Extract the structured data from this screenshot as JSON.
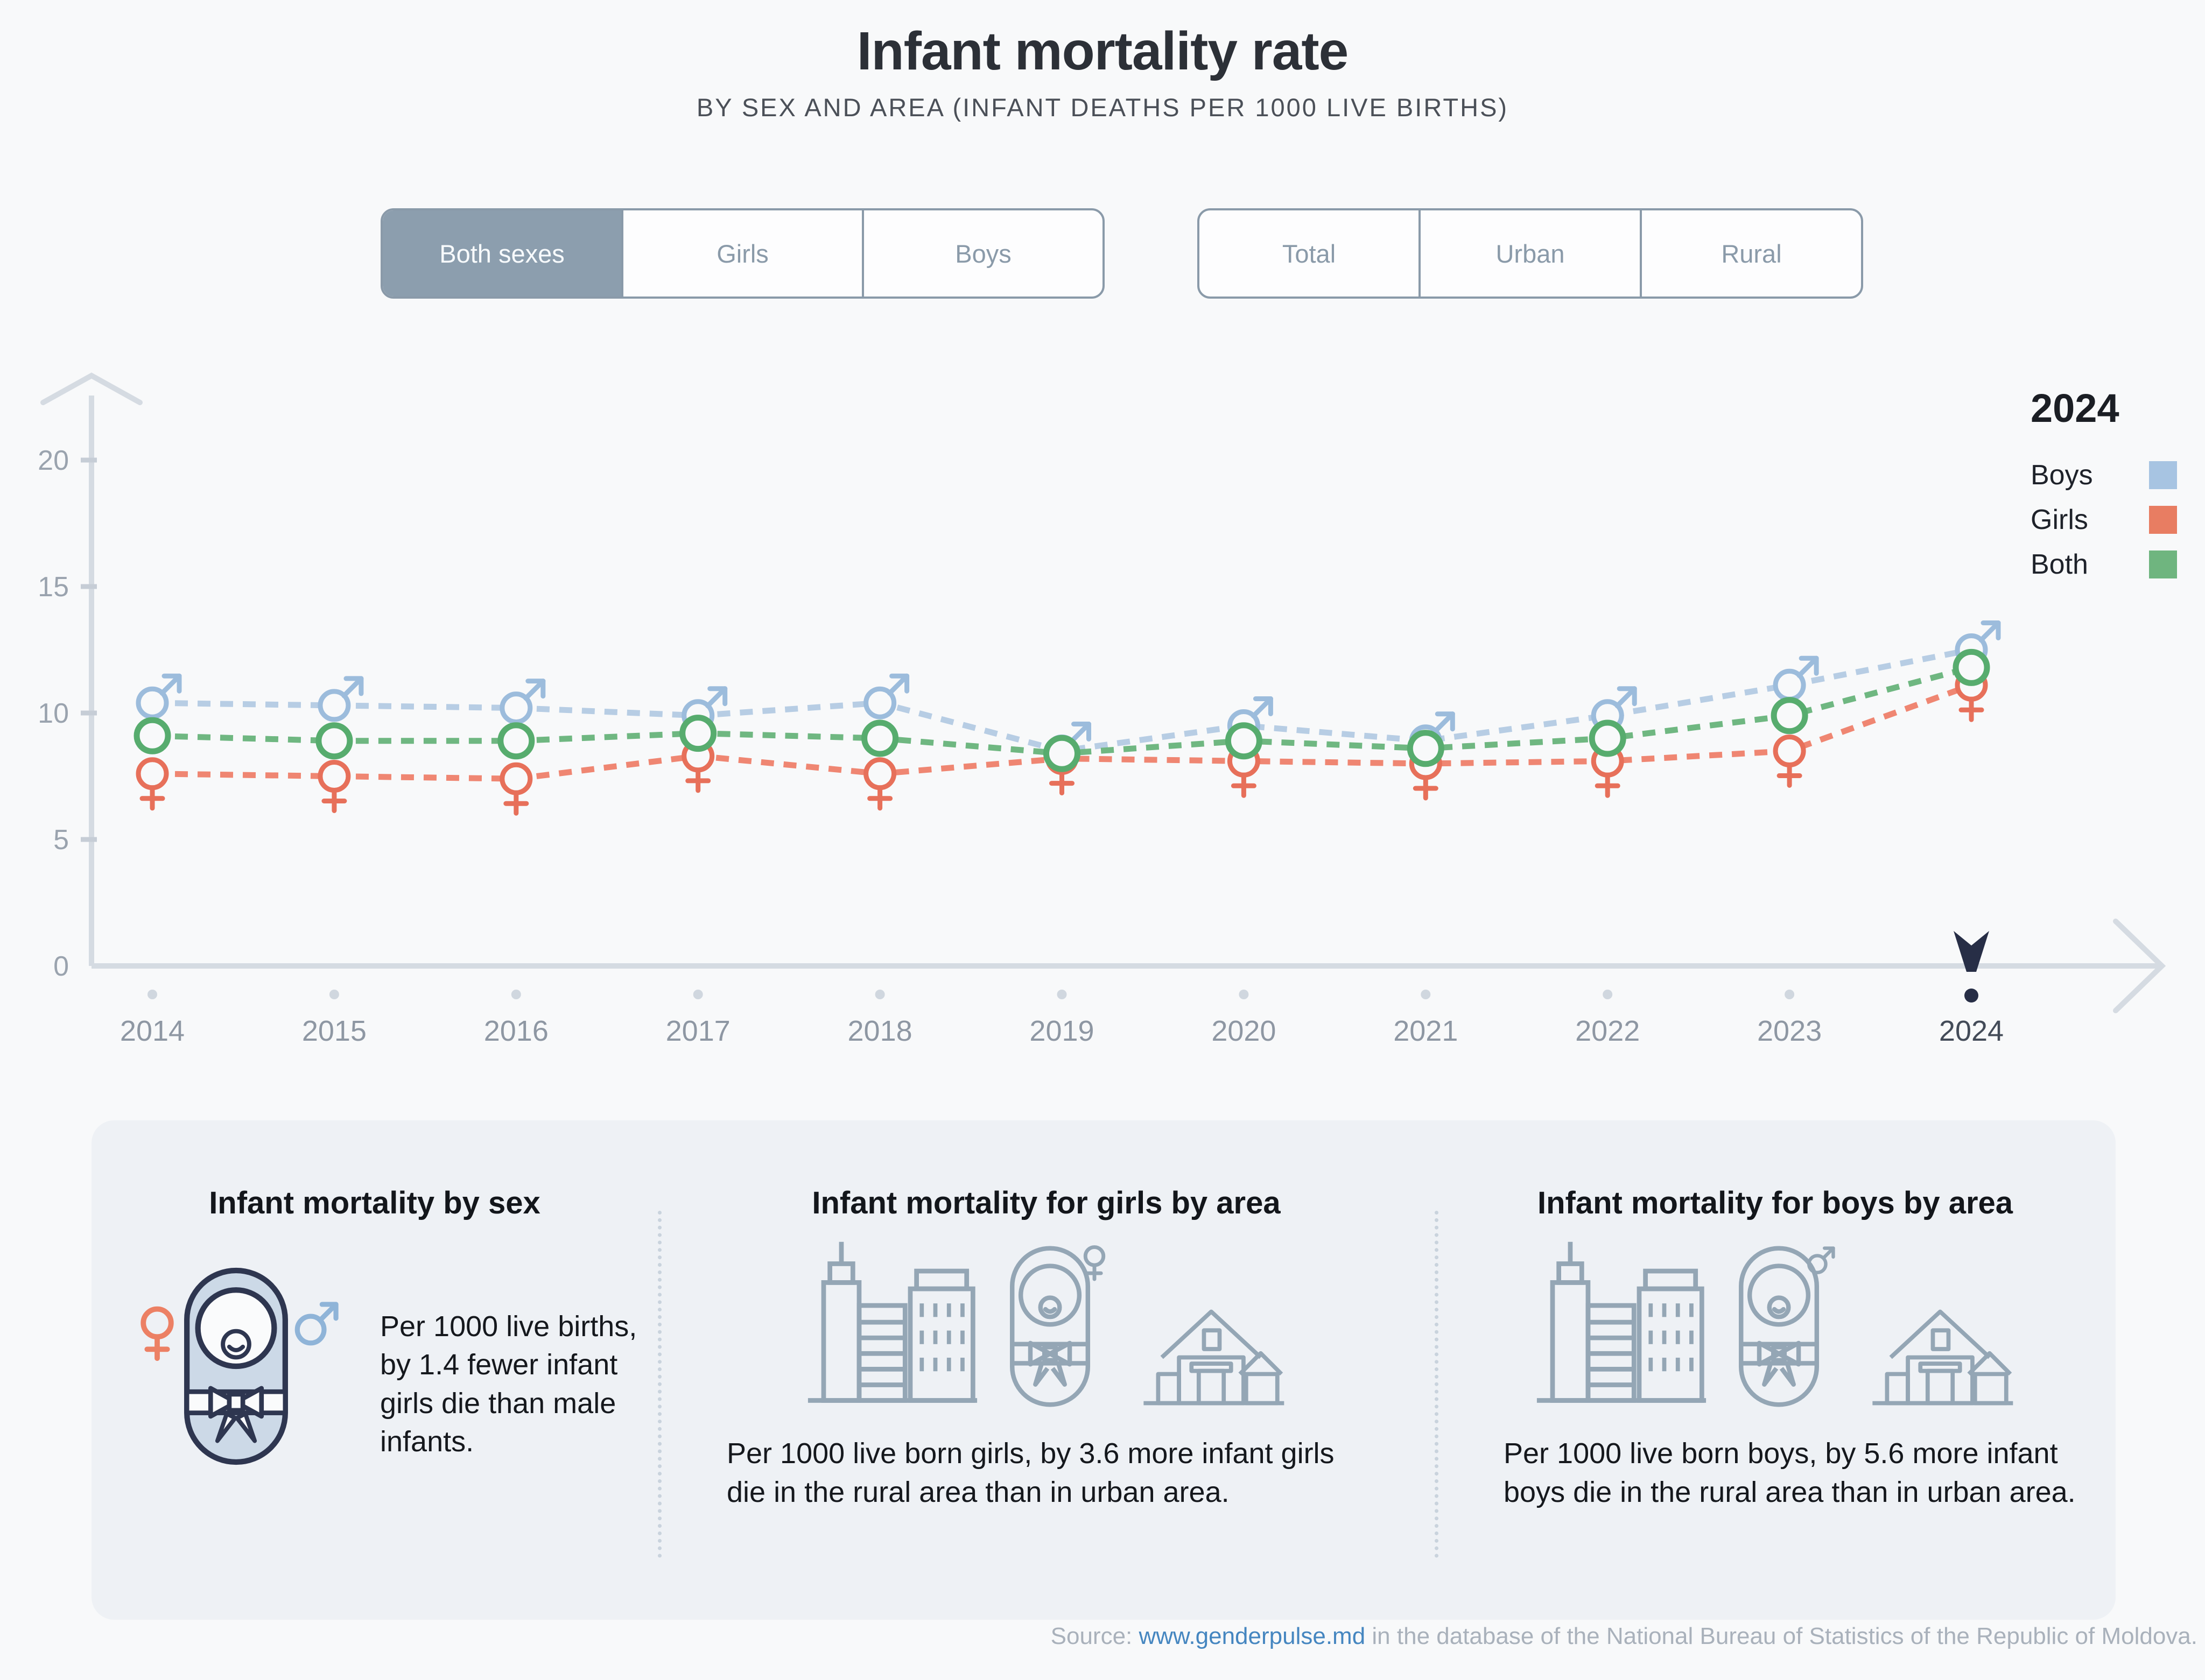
{
  "title": "Infant mortality rate",
  "subtitle": "BY SEX AND AREA (INFANT DEATHS PER 1000 LIVE BIRTHS)",
  "sex_toggle": {
    "options": [
      "Both sexes",
      "Girls",
      "Boys"
    ],
    "selected": "Both sexes"
  },
  "area_toggle": {
    "options": [
      "Total",
      "Urban",
      "Rural"
    ],
    "selected": ""
  },
  "legend": {
    "year": "2024",
    "items": [
      {
        "label": "Boys",
        "color": "#a7c4e2"
      },
      {
        "label": "Girls",
        "color": "#e87d62"
      },
      {
        "label": "Both",
        "color": "#6fb57f"
      }
    ]
  },
  "chart_data": {
    "type": "line",
    "x": [
      "2014",
      "2015",
      "2016",
      "2017",
      "2018",
      "2019",
      "2020",
      "2021",
      "2022",
      "2023",
      "2024"
    ],
    "ylim": [
      0,
      20
    ],
    "yticks": [
      0,
      5,
      10,
      15,
      20
    ],
    "highlight_x": "2024",
    "grid": false,
    "legend_position": "top-right",
    "series": [
      {
        "name": "Boys",
        "marker": "male",
        "color": "#9cbcdc",
        "line_color": "#b7cde4",
        "values": [
          10.4,
          10.3,
          10.2,
          9.9,
          10.4,
          8.5,
          9.5,
          8.9,
          9.9,
          11.1,
          12.5
        ]
      },
      {
        "name": "Girls",
        "marker": "female",
        "color": "#e7705a",
        "line_color": "#ef8672",
        "values": [
          7.6,
          7.5,
          7.4,
          8.3,
          7.6,
          8.2,
          8.1,
          8.0,
          8.1,
          8.5,
          11.1
        ]
      },
      {
        "name": "Both",
        "marker": "circle",
        "color": "#57ac6e",
        "line_color": "#6fb781",
        "values": [
          9.1,
          8.9,
          8.9,
          9.2,
          9.0,
          8.4,
          8.9,
          8.6,
          9.0,
          9.9,
          11.8
        ]
      }
    ]
  },
  "cards": [
    {
      "title": "Infant mortality by sex",
      "text": "Per 1000 live births, by 1.4 fewer infant girls die than male infants."
    },
    {
      "title": "Infant mortality for girls by area",
      "text": "Per 1000 live born girls, by 3.6 more infant girls die in the rural area than in urban area."
    },
    {
      "title": "Infant mortality for boys by area",
      "text": "Per 1000 live born boys, by 5.6 more infant boys die in the rural area than in urban area."
    }
  ],
  "source": {
    "prefix": "Source: ",
    "link_text": "www.genderpulse.md",
    "suffix": " in the database of the National Bureau of Statistics of the Republic of Moldova."
  }
}
